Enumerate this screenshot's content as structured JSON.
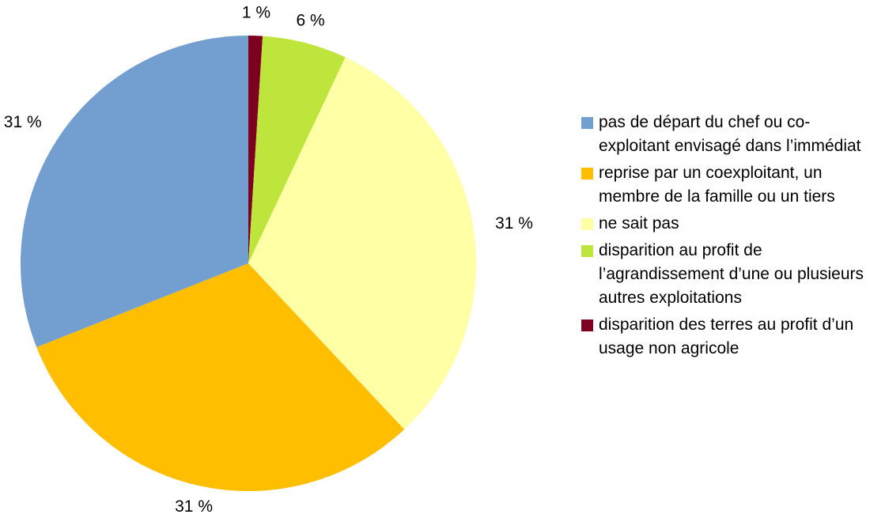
{
  "chart_data": {
    "type": "pie",
    "categories": [
      "pas de départ du chef ou co-exploitant envisagé dans l’immédiat",
      "reprise par un coexploitant, un membre de la famille ou un tiers",
      "ne sait pas",
      "disparition au profit de l’agrandissement d’une ou plusieurs autres exploitations",
      "disparition des terres au profit d’un usage non agricole"
    ],
    "values": [
      31,
      31,
      31,
      6,
      1
    ],
    "value_labels": [
      "31 %",
      "31 %",
      "31 %",
      "6 %",
      "1 %"
    ],
    "colors": [
      "#729fcf",
      "#ffbf00",
      "#ffffa6",
      "#bde53c",
      "#7e0021"
    ],
    "legend": "right"
  }
}
